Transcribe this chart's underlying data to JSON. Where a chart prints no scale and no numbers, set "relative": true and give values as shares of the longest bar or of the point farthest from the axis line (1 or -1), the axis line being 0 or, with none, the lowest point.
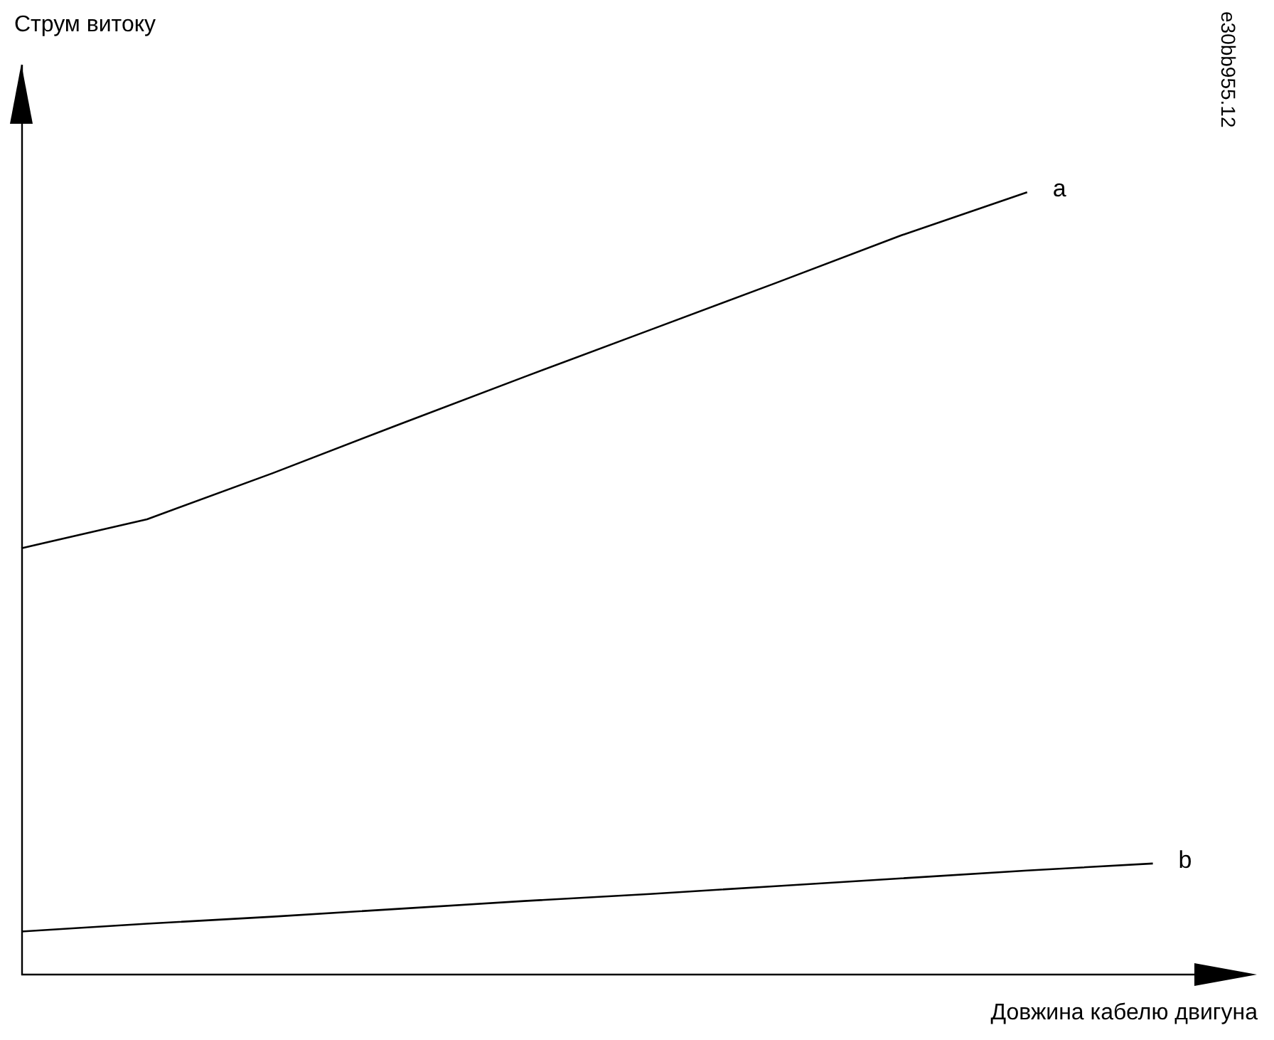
{
  "chart_data": {
    "type": "line",
    "relative": true,
    "xlabel": "Довжина кабелю двигуна",
    "categories": [
      null,
      null,
      null,
      null,
      null,
      null,
      null,
      null,
      null,
      null
    ],
    "legend": false,
    "marker": "none",
    "line_style": "solid",
    "annotations": [
      "Струм витоку",
      "e30bb955.12"
    ],
    "series": [
      {
        "name": "a",
        "color": "#000000",
        "values": [
          0.545,
          0.582,
          0.641,
          0.703,
          0.764,
          0.824,
          0.884,
          0.945,
          1,
          null
        ]
      },
      {
        "name": "b",
        "color": "#000000",
        "values": [
          0.055,
          0.065,
          0.074,
          0.084,
          0.094,
          0.103,
          0.113,
          0.123,
          0.133,
          0.142
        ]
      }
    ]
  }
}
